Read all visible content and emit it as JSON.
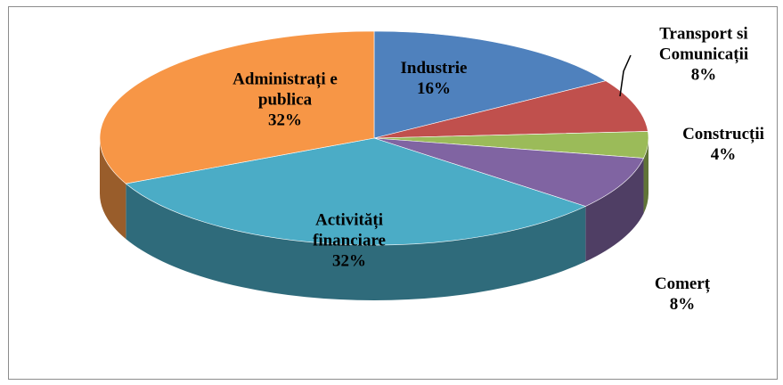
{
  "chart_data": {
    "type": "pie",
    "categories": [
      "Industrie",
      "Transport si Comunicații",
      "Construcții",
      "Comerț",
      "Activități financiare",
      "Administrați e publica"
    ],
    "values": [
      16,
      8,
      4,
      8,
      32,
      32
    ],
    "value_labels": [
      "16%",
      "8%",
      "4%",
      "8%",
      "32%",
      "32%"
    ],
    "colors": [
      "#4f81bd",
      "#c0504d",
      "#9bbb59",
      "#8064a2",
      "#4bacc6",
      "#f79646"
    ]
  }
}
